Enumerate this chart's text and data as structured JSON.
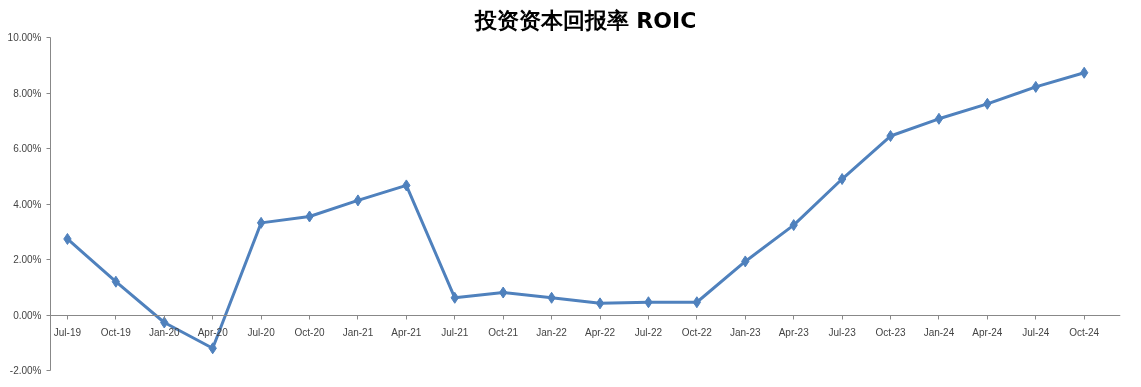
{
  "chart_data": {
    "type": "line",
    "title": "投资资本回报率 ROIC",
    "categories": [
      "Jul-19",
      "Oct-19",
      "Jan-20",
      "Apr-20",
      "Jul-20",
      "Oct-20",
      "Jan-21",
      "Apr-21",
      "Jul-21",
      "Oct-21",
      "Jan-22",
      "Apr-22",
      "Jul-22",
      "Oct-22",
      "Jan-23",
      "Apr-23",
      "Jul-23",
      "Oct-23",
      "Jan-24",
      "Apr-24",
      "Jul-24",
      "Oct-24"
    ],
    "series": [
      {
        "color": "#4f81bd",
        "values": [
          2.74,
          1.2,
          -0.27,
          -1.2,
          3.32,
          3.55,
          4.13,
          4.67,
          0.62,
          0.81,
          0.62,
          0.42,
          0.46,
          0.46,
          1.93,
          3.24,
          4.9,
          6.45,
          7.07,
          7.61,
          8.22,
          8.73
        ]
      }
    ],
    "ylim": [
      -2,
      10
    ],
    "yticks": [
      {
        "value": -2,
        "label": "-2.00%"
      },
      {
        "value": 0,
        "label": "0.00%"
      },
      {
        "value": 2,
        "label": "2.00%"
      },
      {
        "value": 4,
        "label": "4.00%"
      },
      {
        "value": 6,
        "label": "6.00%"
      },
      {
        "value": 8,
        "label": "8.00%"
      },
      {
        "value": 10,
        "label": "10.00%"
      }
    ],
    "grid": false,
    "marker": "diamond",
    "line_style": "solid"
  }
}
